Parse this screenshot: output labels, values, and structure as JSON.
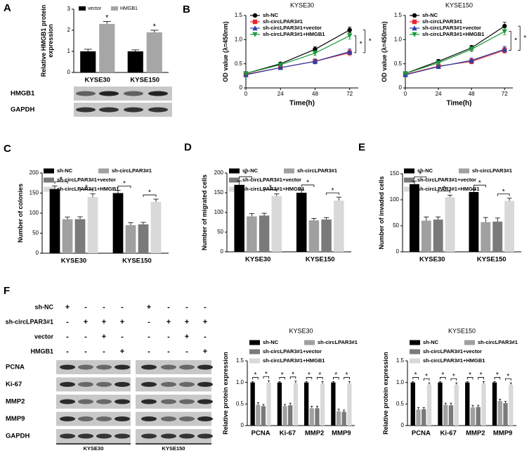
{
  "chart_data": [
    {
      "type": "bar",
      "panel": "A",
      "y_label": "Relative HMGB1 protein expression",
      "categories": [
        "KYSE30",
        "KYSE150"
      ],
      "series": [
        {
          "name": "vector",
          "color": "#000000",
          "values": [
            1.0,
            1.0
          ],
          "errors": [
            0.1,
            0.07
          ]
        },
        {
          "name": "HMGB1",
          "color": "#a6a6a6",
          "values": [
            2.3,
            1.9
          ],
          "errors": [
            0.12,
            0.1
          ]
        }
      ],
      "ylim": [
        0,
        3
      ],
      "yticks": [
        0,
        1,
        2,
        3
      ],
      "significance": "*"
    },
    {
      "type": "line",
      "panel": "B",
      "title": "KYSE30",
      "x_label": "Time(h)",
      "y_label": "OD value (λ=450nm)",
      "x": [
        0,
        24,
        48,
        72
      ],
      "xlim": [
        0,
        78
      ],
      "xticks": [
        0,
        24,
        48,
        72
      ],
      "ylim": [
        0,
        1.5
      ],
      "yticks": [
        0,
        0.5,
        {
          "value": 1,
          "label": "1.0"
        },
        1.5
      ],
      "series": [
        {
          "name": "sh-NC",
          "color": "#000000",
          "marker": "circle",
          "values": [
            0.3,
            0.5,
            0.8,
            1.2
          ],
          "errors": [
            0.02,
            0.03,
            0.05,
            0.06
          ]
        },
        {
          "name": "sh-circLPAR3#1",
          "color": "#e8262a",
          "marker": "square",
          "values": [
            0.28,
            0.42,
            0.55,
            0.73
          ],
          "errors": [
            0.02,
            0.04,
            0.05,
            0.06
          ]
        },
        {
          "name": "sh-circLPAR3#1+vector",
          "color": "#2b3ea8",
          "marker": "triangle",
          "values": [
            0.27,
            0.42,
            0.55,
            0.75
          ],
          "errors": [
            0.02,
            0.04,
            0.05,
            0.06
          ]
        },
        {
          "name": "sh-circLPAR3#1+HMGB1",
          "color": "#1a9a3a",
          "marker": "triangle-down",
          "values": [
            0.3,
            0.48,
            0.72,
            1.08
          ],
          "errors": [
            0.02,
            0.03,
            0.05,
            0.07
          ]
        }
      ],
      "significance": "*"
    },
    {
      "type": "line",
      "title": "KYSE150",
      "x_label": "Time(h)",
      "y_label": "OD value (λ=450nm)",
      "x": [
        0,
        24,
        48,
        72
      ],
      "xlim": [
        0,
        78
      ],
      "xticks": [
        0,
        24,
        48,
        72
      ],
      "ylim": [
        0,
        1.5
      ],
      "yticks": [
        0,
        0.5,
        {
          "value": 1,
          "label": "1.0"
        },
        1.5
      ],
      "series": [
        {
          "name": "sh-NC",
          "color": "#000000",
          "marker": "circle",
          "values": [
            0.3,
            0.55,
            0.83,
            1.28
          ],
          "errors": [
            0.02,
            0.04,
            0.05,
            0.08
          ]
        },
        {
          "name": "sh-circLPAR3#1",
          "color": "#e8262a",
          "marker": "square",
          "values": [
            0.28,
            0.45,
            0.55,
            0.78
          ],
          "errors": [
            0.02,
            0.03,
            0.05,
            0.06
          ]
        },
        {
          "name": "sh-circLPAR3#1+vector",
          "color": "#2b3ea8",
          "marker": "triangle",
          "values": [
            0.27,
            0.44,
            0.57,
            0.8
          ],
          "errors": [
            0.02,
            0.03,
            0.05,
            0.06
          ]
        },
        {
          "name": "sh-circLPAR3#1+HMGB1",
          "color": "#1a9a3a",
          "marker": "triangle-down",
          "values": [
            0.3,
            0.52,
            0.8,
            1.17
          ],
          "errors": [
            0.02,
            0.04,
            0.05,
            0.07
          ]
        }
      ],
      "significance": "*"
    },
    {
      "type": "bar",
      "panel": "C",
      "y_label": "Number of colonies",
      "categories": [
        "KYSE30",
        "KYSE150"
      ],
      "series": [
        {
          "name": "sh-NC",
          "color": "#000000",
          "values": [
            160,
            150
          ],
          "errors": [
            8,
            7
          ]
        },
        {
          "name": "sh-circLPAR3#1",
          "color": "#a0a0a0",
          "values": [
            85,
            70
          ],
          "errors": [
            5,
            6
          ]
        },
        {
          "name": "sh-circLPAR3#1+vector",
          "color": "#7a7a7a",
          "values": [
            85,
            72
          ],
          "errors": [
            6,
            5
          ]
        },
        {
          "name": "sh-circLPAR3#1+HMGB1",
          "color": "#d9d9d9",
          "values": [
            140,
            128
          ],
          "errors": [
            8,
            7
          ]
        }
      ],
      "ylim": [
        0,
        200
      ],
      "yticks": [
        0,
        50,
        100,
        150,
        200
      ],
      "significance": "*"
    },
    {
      "type": "bar",
      "panel": "D",
      "y_label": "Number of migrated cells",
      "categories": [
        "KYSE30",
        "KYSE150"
      ],
      "series": [
        {
          "name": "sh-NC",
          "color": "#000000",
          "values": [
            170,
            150
          ],
          "errors": [
            10,
            9
          ]
        },
        {
          "name": "sh-circLPAR3#1",
          "color": "#a0a0a0",
          "values": [
            90,
            80
          ],
          "errors": [
            7,
            5
          ]
        },
        {
          "name": "sh-circLPAR3#1+vector",
          "color": "#7a7a7a",
          "values": [
            92,
            82
          ],
          "errors": [
            6,
            5
          ]
        },
        {
          "name": "sh-circLPAR3#1+HMGB1",
          "color": "#d9d9d9",
          "values": [
            142,
            130
          ],
          "errors": [
            5,
            9
          ]
        }
      ],
      "ylim": [
        0,
        200
      ],
      "yticks": [
        0,
        50,
        100,
        150,
        200
      ],
      "significance": "*"
    },
    {
      "type": "bar",
      "panel": "E",
      "y_label": "Number of invaded cells",
      "categories": [
        "KYSE30",
        "KYSE150"
      ],
      "series": [
        {
          "name": "sh-NC",
          "color": "#000000",
          "values": [
            130,
            115
          ],
          "errors": [
            6,
            5
          ]
        },
        {
          "name": "sh-circLPAR3#1",
          "color": "#a0a0a0",
          "values": [
            60,
            57
          ],
          "errors": [
            7,
            9
          ]
        },
        {
          "name": "sh-circLPAR3#1+vector",
          "color": "#7a7a7a",
          "values": [
            62,
            58
          ],
          "errors": [
            5,
            7
          ]
        },
        {
          "name": "sh-circLPAR3#1+HMGB1",
          "color": "#d9d9d9",
          "values": [
            105,
            98
          ],
          "errors": [
            4,
            5
          ]
        }
      ],
      "ylim": [
        0,
        150
      ],
      "yticks": [
        0,
        50,
        100,
        150
      ],
      "significance": "*"
    },
    {
      "type": "bar",
      "panel": "F",
      "title": "KYSE30",
      "y_label": "Relative protein expression",
      "categories": [
        "PCNA",
        "Ki-67",
        "MMP2",
        "MMP9"
      ],
      "series": [
        {
          "name": "sh-NC",
          "color": "#000000",
          "values": [
            1,
            1,
            1,
            1
          ],
          "errors": [
            0.02,
            0.02,
            0.02,
            0.02
          ]
        },
        {
          "name": "sh-circLPAR3#1",
          "color": "#a0a0a0",
          "values": [
            0.48,
            0.45,
            0.4,
            0.33
          ],
          "errors": [
            0.05,
            0.04,
            0.05,
            0.05
          ]
        },
        {
          "name": "sh-circLPAR3#1+vector",
          "color": "#7a7a7a",
          "values": [
            0.45,
            0.47,
            0.4,
            0.32
          ],
          "errors": [
            0.04,
            0.05,
            0.05,
            0.04
          ]
        },
        {
          "name": "sh-circLPAR3#1+HMGB1",
          "color": "#d9d9d9",
          "values": [
            1,
            0.98,
            0.97,
            0.98
          ],
          "errors": [
            0.04,
            0.05,
            0.05,
            0.04
          ]
        }
      ],
      "ylim": [
        0,
        1.5
      ],
      "yticks": [
        0,
        0.5,
        {
          "value": 1,
          "label": "1.0"
        },
        1.5
      ],
      "significance": "*"
    },
    {
      "type": "bar",
      "title": "KYSE150",
      "y_label": "Relative protein expression",
      "categories": [
        "PCNA",
        "Ki-67",
        "MMP2",
        "MMP9"
      ],
      "series": [
        {
          "name": "sh-NC",
          "color": "#000000",
          "values": [
            1,
            1,
            1,
            1
          ],
          "errors": [
            0.02,
            0.02,
            0.02,
            0.02
          ]
        },
        {
          "name": "sh-circLPAR3#1",
          "color": "#a0a0a0",
          "values": [
            0.37,
            0.48,
            0.42,
            0.57
          ],
          "errors": [
            0.05,
            0.04,
            0.05,
            0.04
          ]
        },
        {
          "name": "sh-circLPAR3#1+vector",
          "color": "#7a7a7a",
          "values": [
            0.38,
            0.47,
            0.43,
            0.52
          ],
          "errors": [
            0.04,
            0.05,
            0.04,
            0.04
          ]
        },
        {
          "name": "sh-circLPAR3#1+HMGB1",
          "color": "#d9d9d9",
          "values": [
            0.95,
            0.95,
            0.97,
            0.95
          ],
          "errors": [
            0.04,
            0.04,
            0.05,
            0.04
          ]
        }
      ],
      "ylim": [
        0,
        1.5
      ],
      "yticks": [
        0,
        0.5,
        {
          "value": 1,
          "label": "1.0"
        },
        1.5
      ],
      "significance": "*"
    }
  ],
  "blot_a": {
    "rows": [
      "HMGB1",
      "GAPDH"
    ]
  },
  "blot_f": {
    "conditions": [
      {
        "label": "sh-NC",
        "lanes": [
          "+",
          "-",
          "-",
          "-",
          "+",
          "-",
          "-",
          "-"
        ]
      },
      {
        "label": "sh-circLPAR3#1",
        "lanes": [
          "-",
          "+",
          "+",
          "+",
          "-",
          "+",
          "+",
          "+"
        ]
      },
      {
        "label": "vector",
        "lanes": [
          "-",
          "-",
          "+",
          "-",
          "-",
          "-",
          "+",
          "-"
        ]
      },
      {
        "label": "HMGB1",
        "lanes": [
          "-",
          "-",
          "-",
          "+",
          "-",
          "-",
          "-",
          "+"
        ]
      }
    ],
    "rows": [
      "PCNA",
      "Ki-67",
      "MMP2",
      "MMP9",
      "GAPDH"
    ],
    "groups": [
      "KYSE30",
      "KYSE150"
    ]
  }
}
